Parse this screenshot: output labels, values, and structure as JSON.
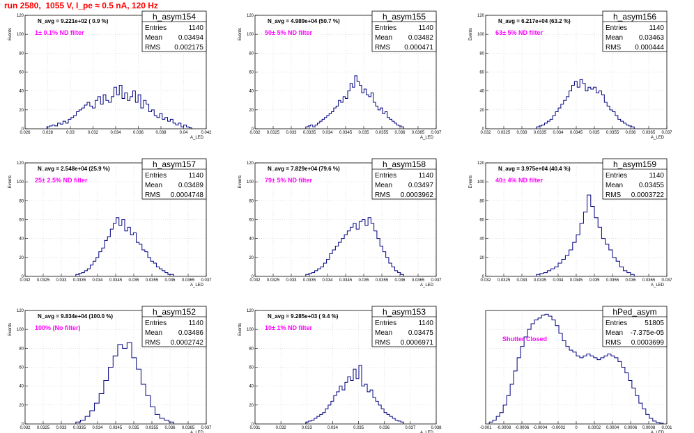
{
  "page_title": "run 2580,  1055 V, I_pe ≈ 0.5 nA, 120 Hz",
  "stat_labels": {
    "entries": "Entries",
    "mean": "Mean",
    "rms": "RMS"
  },
  "y_axis_label": "Events",
  "colors": {
    "title": "#ff0000",
    "filter_label": "#ff00ff",
    "histogram": "#000080",
    "grid": "#c8c8c8"
  },
  "chart_data": [
    {
      "type": "histogram",
      "name": "h_asym154",
      "entries": "1140",
      "mean": "0.03494",
      "rms": "0.002175",
      "annotation": "N_avg = 9.221e+02 ( 0.9 %)",
      "filter_label": "1± 0.1% ND filter",
      "xlabel": "A_LED",
      "ylabel": "Events",
      "xlim": [
        0.026,
        0.042
      ],
      "ylim": [
        0,
        120
      ],
      "xticks": [
        "0.026",
        "0.028",
        "0.03",
        "0.032",
        "0.034",
        "0.036",
        "0.038",
        "0.04",
        "0.042"
      ],
      "yticks": [
        "0",
        "20",
        "40",
        "60",
        "80",
        "100",
        "120"
      ],
      "values": [
        2,
        3,
        4,
        3,
        6,
        5,
        8,
        6,
        10,
        12,
        14,
        18,
        20,
        22,
        25,
        28,
        24,
        22,
        30,
        34,
        26,
        36,
        30,
        28,
        34,
        44,
        36,
        46,
        32,
        38,
        30,
        34,
        40,
        28,
        36,
        22,
        30,
        26,
        18,
        20,
        14,
        12,
        16,
        10,
        12,
        8,
        10,
        6,
        4,
        6,
        2,
        4,
        2,
        1
      ]
    },
    {
      "type": "histogram",
      "name": "h_asym155",
      "entries": "1140",
      "mean": "0.03482",
      "rms": "0.000471",
      "annotation": "N_avg = 4.989e+04 (50.7 %)",
      "filter_label": "50± 5% ND filter",
      "xlabel": "A_LED",
      "ylabel": "Events",
      "xlim": [
        0.032,
        0.037
      ],
      "ylim": [
        0,
        120
      ],
      "xticks": [
        "0.032",
        "0.0325",
        "0.033",
        "0.0335",
        "0.034",
        "0.0345",
        "0.035",
        "0.0355",
        "0.036",
        "0.0365",
        "0.037"
      ],
      "yticks": [
        "0",
        "20",
        "40",
        "60",
        "80",
        "100",
        "120"
      ],
      "values": [
        2,
        3,
        4,
        2,
        4,
        6,
        8,
        10,
        12,
        14,
        16,
        18,
        22,
        24,
        30,
        28,
        34,
        32,
        40,
        48,
        44,
        56,
        50,
        46,
        38,
        42,
        36,
        34,
        38,
        28,
        24,
        20,
        22,
        16,
        18,
        12,
        10,
        8,
        6,
        4,
        3,
        2
      ]
    },
    {
      "type": "histogram",
      "name": "h_asym156",
      "entries": "1140",
      "mean": "0.03463",
      "rms": "0.000444",
      "annotation": "N_avg = 6.217e+04 (63.2 %)",
      "filter_label": "63± 5% ND filter",
      "xlabel": "A_LED",
      "ylabel": "Events",
      "xlim": [
        0.032,
        0.037
      ],
      "ylim": [
        0,
        120
      ],
      "xticks": [
        "0.032",
        "0.0325",
        "0.033",
        "0.0335",
        "0.034",
        "0.0345",
        "0.035",
        "0.0355",
        "0.036",
        "0.0365",
        "0.037"
      ],
      "yticks": [
        "0",
        "20",
        "40",
        "60",
        "80",
        "100",
        "120"
      ],
      "values": [
        2,
        3,
        4,
        6,
        8,
        10,
        14,
        18,
        22,
        26,
        30,
        34,
        40,
        46,
        50,
        44,
        52,
        48,
        40,
        44,
        42,
        44,
        38,
        40,
        36,
        28,
        24,
        20,
        18,
        14,
        10,
        8,
        6,
        4,
        3,
        2
      ]
    },
    {
      "type": "histogram",
      "name": "h_asym157",
      "entries": "1140",
      "mean": "0.03489",
      "rms": "0.0004748",
      "annotation": "N_avg = 2.548e+04 (25.9 %)",
      "filter_label": "25± 2.5% ND filter",
      "xlabel": "A_LED",
      "ylabel": "Events",
      "xlim": [
        0.032,
        0.037
      ],
      "ylim": [
        0,
        120
      ],
      "xticks": [
        "0.032",
        "0.0325",
        "0.033",
        "0.0335",
        "0.034",
        "0.0345",
        "0.035",
        "0.0355",
        "0.036",
        "0.0365",
        "0.037"
      ],
      "yticks": [
        "0",
        "20",
        "40",
        "60",
        "80",
        "100",
        "120"
      ],
      "values": [
        2,
        3,
        4,
        6,
        8,
        12,
        16,
        20,
        26,
        30,
        38,
        42,
        50,
        56,
        62,
        54,
        60,
        48,
        52,
        44,
        46,
        36,
        34,
        28,
        26,
        20,
        16,
        14,
        10,
        8,
        6,
        4,
        2,
        2
      ]
    },
    {
      "type": "histogram",
      "name": "h_asym158",
      "entries": "1140",
      "mean": "0.03497",
      "rms": "0.0003962",
      "annotation": "N_avg = 7.829e+04 (79.6 %)",
      "filter_label": "79± 5% ND filter",
      "xlabel": "A_LED",
      "ylabel": "Events",
      "xlim": [
        0.032,
        0.037
      ],
      "ylim": [
        0,
        120
      ],
      "xticks": [
        "0.032",
        "0.0325",
        "0.033",
        "0.0335",
        "0.034",
        "0.0345",
        "0.035",
        "0.0355",
        "0.036",
        "0.0365",
        "0.037"
      ],
      "yticks": [
        "0",
        "20",
        "40",
        "60",
        "80",
        "100",
        "120"
      ],
      "values": [
        2,
        3,
        4,
        6,
        8,
        10,
        14,
        18,
        24,
        28,
        32,
        36,
        40,
        44,
        48,
        52,
        56,
        50,
        58,
        60,
        54,
        62,
        56,
        48,
        40,
        32,
        26,
        20,
        14,
        10,
        6,
        4,
        2
      ]
    },
    {
      "type": "histogram",
      "name": "h_asym159",
      "entries": "1140",
      "mean": "0.03455",
      "rms": "0.0003722",
      "annotation": "N_avg = 3.975e+04 (40.4 %)",
      "filter_label": "40± 4% ND filter",
      "xlabel": "A_LED",
      "ylabel": "Events",
      "xlim": [
        0.032,
        0.037
      ],
      "ylim": [
        0,
        120
      ],
      "xticks": [
        "0.032",
        "0.0325",
        "0.033",
        "0.0335",
        "0.034",
        "0.0345",
        "0.035",
        "0.0355",
        "0.036",
        "0.0365",
        "0.037"
      ],
      "yticks": [
        "0",
        "20",
        "40",
        "60",
        "80",
        "100",
        "120"
      ],
      "values": [
        2,
        3,
        4,
        6,
        8,
        10,
        14,
        18,
        22,
        28,
        36,
        44,
        56,
        68,
        86,
        74,
        62,
        52,
        40,
        34,
        28,
        20,
        16,
        10,
        6,
        4,
        2
      ]
    },
    {
      "type": "histogram",
      "name": "h_asym152",
      "entries": "1140",
      "mean": "0.03486",
      "rms": "0.0002742",
      "annotation": "N_avg = 9.834e+04 (100.0 %)",
      "filter_label": "100% (No filter)",
      "xlabel": "A_LED",
      "ylabel": "Events",
      "xlim": [
        0.032,
        0.037
      ],
      "ylim": [
        0,
        120
      ],
      "xticks": [
        "0.032",
        "0.0325",
        "0.033",
        "0.0335",
        "0.034",
        "0.0345",
        "0.035",
        "0.0355",
        "0.036",
        "0.0365",
        "0.037"
      ],
      "yticks": [
        "0",
        "20",
        "40",
        "60",
        "80",
        "100",
        "120"
      ],
      "values": [
        2,
        4,
        8,
        14,
        22,
        32,
        46,
        60,
        72,
        84,
        80,
        86,
        70,
        58,
        42,
        30,
        18,
        10,
        6,
        4,
        2
      ]
    },
    {
      "type": "histogram",
      "name": "h_asym153",
      "entries": "1140",
      "mean": "0.03475",
      "rms": "0.0006971",
      "annotation": "N_avg = 9.285e+03 ( 9.4 %)",
      "filter_label": "10± 1% ND filter",
      "xlabel": "A_LED",
      "ylabel": "Events",
      "xlim": [
        0.031,
        0.038
      ],
      "ylim": [
        0,
        120
      ],
      "xticks": [
        "0.031",
        "0.032",
        "0.033",
        "0.034",
        "0.035",
        "0.036",
        "0.037",
        "0.038"
      ],
      "yticks": [
        "0",
        "20",
        "40",
        "60",
        "80",
        "100",
        "120"
      ],
      "values": [
        2,
        3,
        4,
        6,
        8,
        10,
        12,
        16,
        20,
        24,
        30,
        34,
        40,
        36,
        44,
        50,
        46,
        58,
        48,
        62,
        40,
        42,
        34,
        36,
        28,
        24,
        20,
        16,
        12,
        10,
        8,
        6,
        4,
        3,
        2
      ]
    },
    {
      "type": "histogram",
      "name": "hPed_asym",
      "entries": "51805",
      "mean": "-7.375e-05",
      "rms": "0.0003699",
      "annotation": "",
      "filter_label": "Shutter Closed",
      "xlabel": "A_LED",
      "ylabel": "",
      "xlim": [
        -0.001,
        0.001
      ],
      "ylim": [
        0,
        1200
      ],
      "xticks": [
        "-0.001",
        "-0.0008",
        "-0.0006",
        "-0.0004",
        "-0.0002",
        "0",
        "0.0002",
        "0.0004",
        "0.0006",
        "0.0008",
        "0.001"
      ],
      "yticks": [],
      "values": [
        20,
        40,
        80,
        120,
        200,
        300,
        420,
        560,
        700,
        820,
        920,
        1000,
        1060,
        1100,
        1120,
        1150,
        1160,
        1140,
        1100,
        1040,
        960,
        880,
        820,
        780,
        760,
        720,
        700,
        720,
        740,
        720,
        700,
        680,
        700,
        720,
        740,
        720,
        700,
        660,
        600,
        540,
        460,
        380,
        300,
        220,
        160,
        100,
        60,
        30,
        15,
        8
      ]
    }
  ]
}
